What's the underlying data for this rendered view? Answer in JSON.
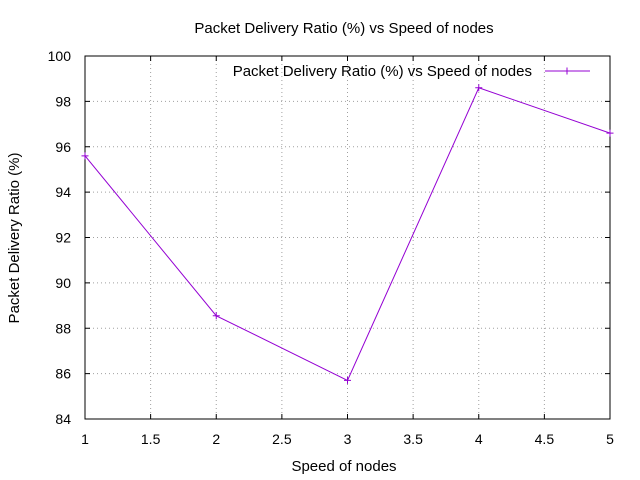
{
  "chart_data": {
    "type": "line",
    "title": "Packet Delivery Ratio (%) vs Speed of nodes",
    "xlabel": "Speed of nodes",
    "ylabel": "Packet Delivery Ratio (%)",
    "xlim": [
      1,
      5
    ],
    "ylim": [
      84,
      100
    ],
    "xticks": [
      1,
      1.5,
      2,
      2.5,
      3,
      3.5,
      4,
      4.5,
      5
    ],
    "yticks": [
      84,
      86,
      88,
      90,
      92,
      94,
      96,
      98,
      100
    ],
    "grid": true,
    "legend_position": "top-right",
    "series": [
      {
        "name": "Packet Delivery Ratio (%) vs Speed of nodes",
        "color": "#9400d3",
        "marker": "plus",
        "x": [
          1,
          2,
          3,
          4,
          5
        ],
        "y": [
          95.6,
          88.55,
          85.7,
          98.6,
          96.6
        ]
      }
    ]
  }
}
